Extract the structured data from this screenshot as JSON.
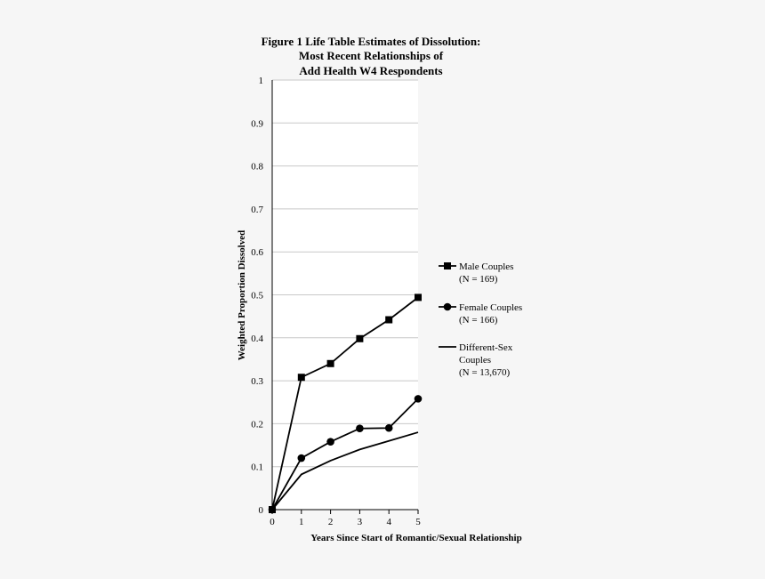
{
  "chart_data": {
    "type": "line",
    "title": [
      "Figure 1 Life Table Estimates of Dissolution:",
      "Most Recent Relationships of",
      "Add Health W4 Respondents"
    ],
    "xlabel": "Years Since Start of Romantic/Sexual Relationship",
    "ylabel": "Weighted Proportion Dissolved",
    "x": [
      0,
      1,
      2,
      3,
      4,
      5
    ],
    "xlim": [
      0,
      5
    ],
    "ylim": [
      0,
      1
    ],
    "yticks": [
      "0",
      "0.1",
      "0.2",
      "0.3",
      "0.4",
      "0.5",
      "0.6",
      "0.7",
      "0.8",
      "0.9",
      "1"
    ],
    "xticks": [
      "0",
      "1",
      "2",
      "3",
      "4",
      "5"
    ],
    "grid": "horizontal",
    "legend_position": "right",
    "series": [
      {
        "name": "Male Couples",
        "legend_lines": [
          "Male Couples",
          "(N = 169)"
        ],
        "marker": "square",
        "color": "#000000",
        "values": [
          0,
          0.308,
          0.34,
          0.398,
          0.442,
          0.494
        ]
      },
      {
        "name": "Female Couples",
        "legend_lines": [
          "Female Couples",
          "(N = 166)"
        ],
        "marker": "circle",
        "color": "#000000",
        "values": [
          0,
          0.12,
          0.158,
          0.189,
          0.19,
          0.258
        ]
      },
      {
        "name": "Different-Sex Couples",
        "legend_lines": [
          "Different-Sex",
          "Couples",
          "(N = 13,670)"
        ],
        "marker": "none",
        "color": "#000000",
        "values": [
          0,
          0.082,
          0.114,
          0.14,
          0.16,
          0.18
        ]
      }
    ]
  }
}
